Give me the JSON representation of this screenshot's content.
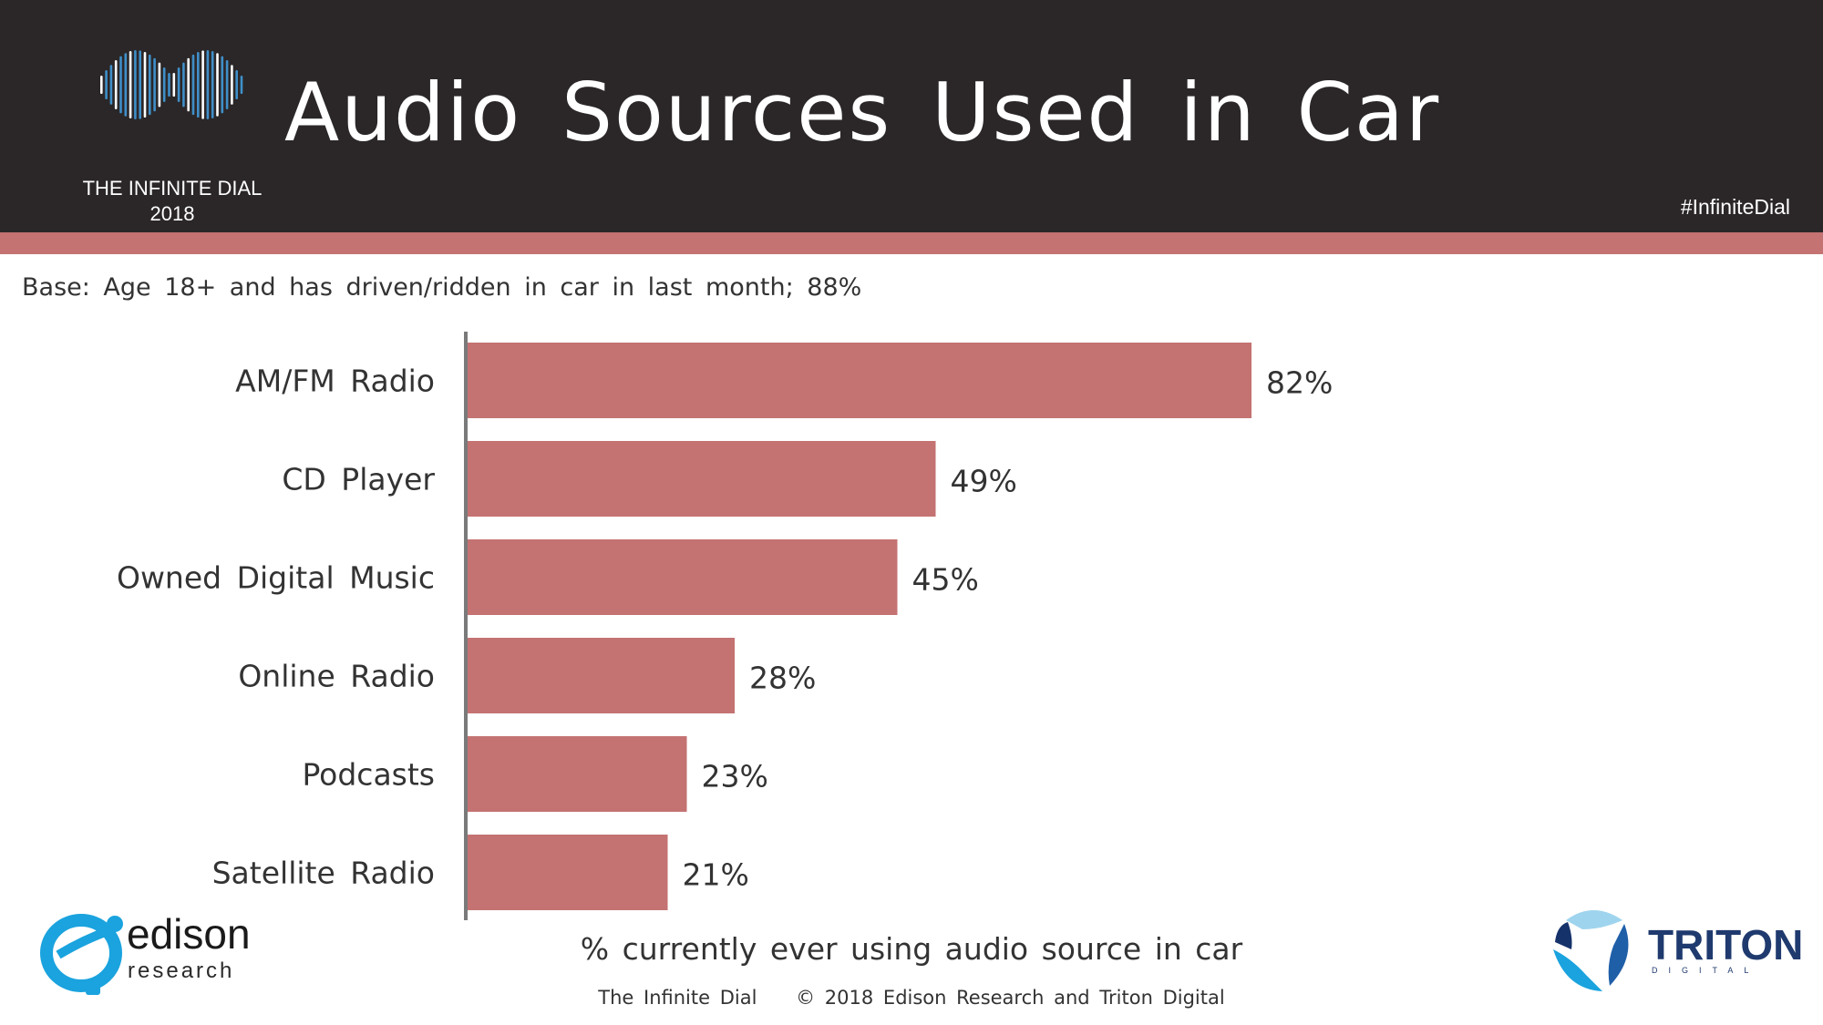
{
  "header": {
    "title": "Audio Sources Used in Car",
    "hashtag": "#InfiniteDial",
    "logo_text": "THE INFINITE DIAL",
    "logo_year": "2018"
  },
  "base_note": "Base: Age 18+ and has driven/ridden in car in last month; 88%",
  "colors": {
    "header_bg": "#2b2728",
    "accent": "#c47272",
    "bar": "#c47272",
    "axis": "#7a7a7a"
  },
  "chart_data": {
    "type": "bar",
    "orientation": "horizontal",
    "categories": [
      "AM/FM Radio",
      "CD Player",
      "Owned Digital Music",
      "Online Radio",
      "Podcasts",
      "Satellite Radio"
    ],
    "values": [
      82,
      49,
      45,
      28,
      23,
      21
    ],
    "value_labels": [
      "82%",
      "49%",
      "45%",
      "28%",
      "23%",
      "21%"
    ],
    "xlabel": "% currently ever using audio source in car",
    "xlim": [
      0,
      100
    ],
    "grid": false
  },
  "footer": {
    "text": "The Infinite Dial    © 2018 Edison Research and Triton Digital"
  },
  "logos": {
    "edison_name": "edison",
    "edison_sub": "research",
    "triton_name": "TRITON",
    "triton_sub": "DIGITAL"
  }
}
